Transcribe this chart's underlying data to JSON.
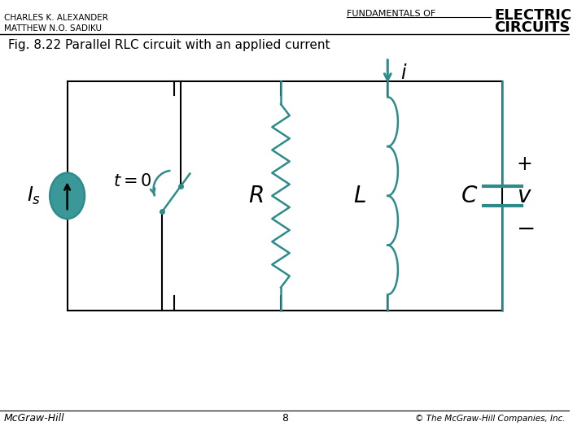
{
  "title_authors": "CHARLES K. ALEXANDER\nMATTHEW N.O. SADIKU",
  "title_header": "FUNDAMENTALS OF",
  "title_electric": "ELECTRIC",
  "title_circuits": "CIRCUITS",
  "fig_caption": "Fig. 8.22 Parallel RLC circuit with an applied current",
  "footer_left": "McGraw-Hill",
  "footer_center": "8",
  "footer_right": "© The McGraw-Hill Companies, Inc.",
  "teal_color": "#2E8B8B",
  "background": "#ffffff",
  "line_color": "#000000"
}
